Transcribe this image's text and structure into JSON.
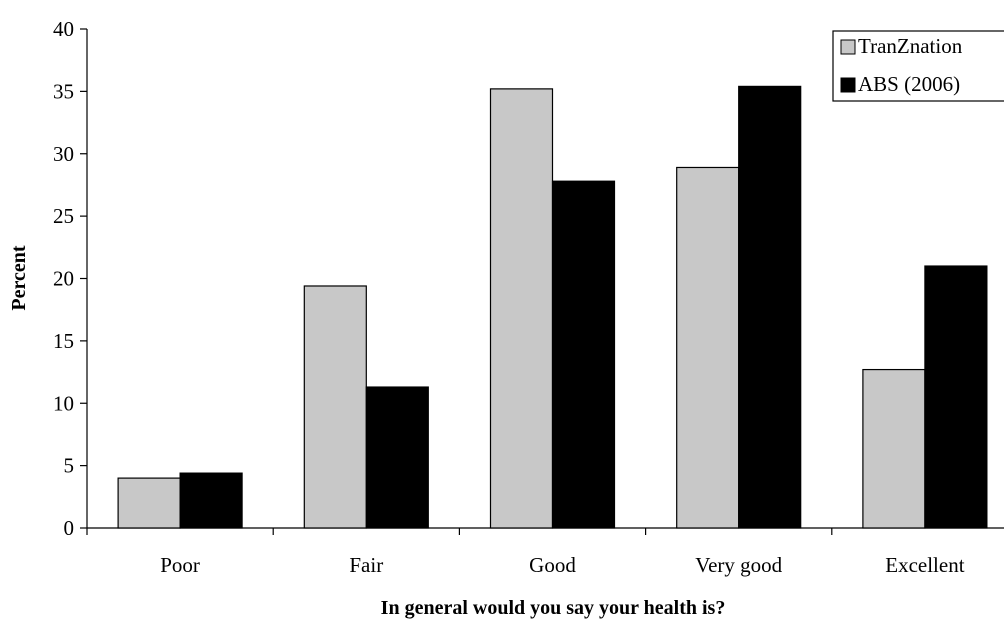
{
  "chart_data": {
    "type": "bar",
    "title": "",
    "xlabel": "In general would you say your health is?",
    "ylabel": "Percent",
    "categories": [
      "Poor",
      "Fair",
      "Good",
      "Very good",
      "Excellent"
    ],
    "ylim": [
      0,
      40
    ],
    "yticks": [
      0,
      5,
      10,
      15,
      20,
      25,
      30,
      35,
      40
    ],
    "grid": false,
    "legend_position": "top-right",
    "series": [
      {
        "name": "TranZnation",
        "color": "#c8c8c8",
        "values": [
          4.0,
          19.4,
          35.2,
          28.9,
          12.7
        ]
      },
      {
        "name": "ABS (2006)",
        "color": "#000000",
        "values": [
          4.4,
          11.3,
          27.8,
          35.4,
          21.0
        ]
      }
    ]
  }
}
